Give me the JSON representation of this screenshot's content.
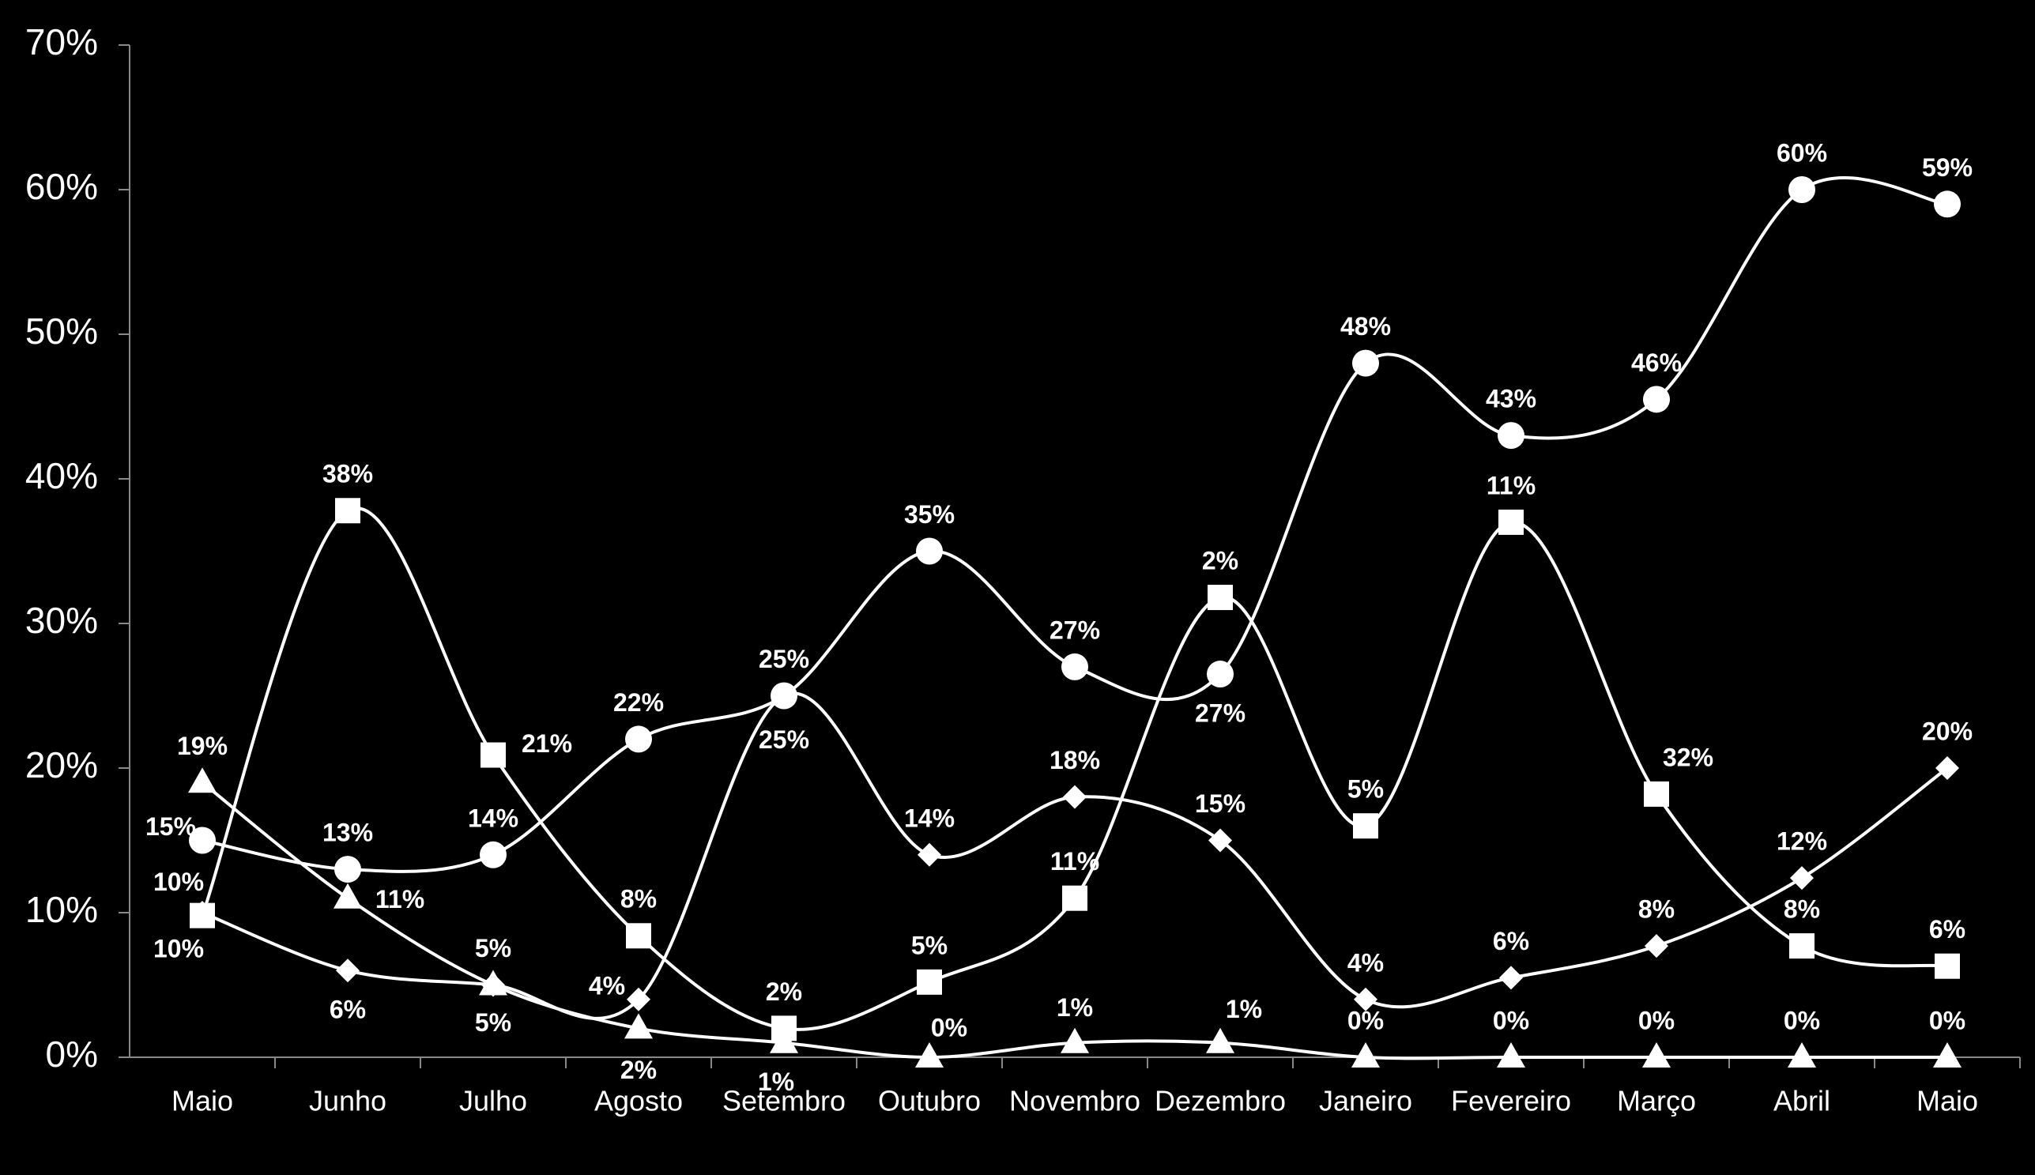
{
  "chart_data": {
    "type": "line",
    "categories": [
      "Maio",
      "Junho",
      "Julho",
      "Agosto",
      "Setembro",
      "Outubro",
      "Novembro",
      "Dezembro",
      "Janeiro",
      "Fevereiro",
      "Março",
      "Abril",
      "Maio"
    ],
    "series": [
      {
        "marker": "circle",
        "color": "#ffffff",
        "values": [
          15,
          13,
          14,
          22,
          25,
          35,
          27,
          26.5,
          48,
          43,
          45.5,
          60,
          59
        ],
        "value_labels": [
          "15%",
          "13%",
          "14%",
          "22%",
          "25%",
          "35%",
          "27%",
          "27%",
          "48%",
          "43%",
          "46%",
          "60%",
          "59%"
        ]
      },
      {
        "marker": "square",
        "color": "#ffffff",
        "values": [
          9.8,
          37.8,
          20.9,
          8.4,
          2,
          5.2,
          11,
          31.8,
          16,
          37,
          18.2,
          7.7,
          6.3
        ],
        "value_labels": [
          "10%",
          "38%",
          "21%",
          "8%",
          "2%",
          "5%",
          "11%",
          null,
          null,
          null,
          null,
          "8%",
          "6%"
        ]
      },
      {
        "marker": "diamond",
        "color": "#ffffff",
        "values": [
          10,
          6,
          5,
          4,
          25,
          14,
          18,
          15,
          4,
          5.5,
          7.7,
          12.4,
          20
        ],
        "value_labels": [
          "10%",
          "6%",
          "5%",
          "4%",
          "25%",
          "14%",
          "18%",
          "15%",
          "4%",
          "6%",
          "8%",
          "12%",
          "20%"
        ]
      },
      {
        "marker": "triangle",
        "color": "#ffffff",
        "values": [
          19,
          11,
          5,
          2,
          1,
          0,
          1,
          1,
          0,
          0,
          0,
          0,
          0
        ],
        "value_labels": [
          "19%",
          "11%",
          "5%",
          "2%",
          "1%",
          "0%",
          "1%",
          "1%",
          "0%",
          "0%",
          "0%",
          "0%",
          "0%"
        ]
      }
    ],
    "annotations": [
      "2%",
      "5%",
      "11%",
      "32%"
    ],
    "ylim": [
      0,
      70
    ],
    "yticks": [
      {
        "value": 0,
        "label": "0%"
      },
      {
        "value": 10,
        "label": "10%"
      },
      {
        "value": 20,
        "label": "20%"
      },
      {
        "value": 30,
        "label": "30%"
      },
      {
        "value": 40,
        "label": "40%"
      },
      {
        "value": 50,
        "label": "50%"
      },
      {
        "value": 60,
        "label": "60%"
      },
      {
        "value": 70,
        "label": "70%"
      }
    ]
  }
}
